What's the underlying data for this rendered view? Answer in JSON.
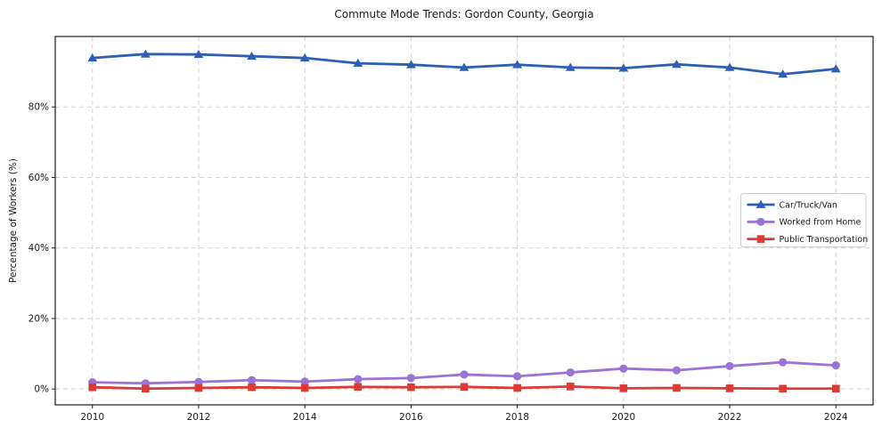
{
  "chart_data": {
    "type": "line",
    "title": "Commute Mode Trends: Gordon County, Georgia",
    "xlabel": "",
    "ylabel": "Percentage of Workers (%)",
    "x": [
      2010,
      2011,
      2012,
      2013,
      2014,
      2015,
      2016,
      2017,
      2018,
      2019,
      2020,
      2021,
      2022,
      2023,
      2024
    ],
    "series": [
      {
        "name": "Car/Truck/Van",
        "color": "#2d5fb5",
        "marker": "triangle",
        "values": [
          93.9,
          95.0,
          94.9,
          94.4,
          93.9,
          92.4,
          92.0,
          91.2,
          92.0,
          91.2,
          91.0,
          92.1,
          91.2,
          89.3,
          90.8
        ]
      },
      {
        "name": "Worked from Home",
        "color": "#9b72d6",
        "marker": "circle",
        "values": [
          1.9,
          1.6,
          2.0,
          2.5,
          2.1,
          2.8,
          3.1,
          4.1,
          3.6,
          4.7,
          5.8,
          5.3,
          6.5,
          7.6,
          6.7
        ]
      },
      {
        "name": "Public Transportation",
        "color": "#da3b34",
        "marker": "square",
        "values": [
          0.5,
          0.1,
          0.3,
          0.5,
          0.3,
          0.6,
          0.5,
          0.6,
          0.3,
          0.7,
          0.2,
          0.3,
          0.2,
          0.1,
          0.1
        ]
      }
    ],
    "xticks": [
      2010,
      2012,
      2014,
      2016,
      2018,
      2020,
      2022,
      2024
    ],
    "xtick_labels": [
      "2010",
      "2012",
      "2014",
      "2016",
      "2018",
      "2020",
      "2022",
      "2024"
    ],
    "ytick_values": [
      0,
      20,
      40,
      60,
      80
    ],
    "ytick_labels": [
      "0%",
      "20%",
      "40%",
      "60%",
      "80%"
    ],
    "xlim": [
      2009.3,
      2024.7
    ],
    "ylim": [
      -4.5,
      100
    ],
    "grid": true,
    "grid_style": "dashed",
    "grid_color": "#d4d4d4",
    "legend_position": "center-right",
    "legend_border_color": "#cfcfcf",
    "spine_color": "#1a1a1a",
    "background_color": "#ffffff"
  }
}
